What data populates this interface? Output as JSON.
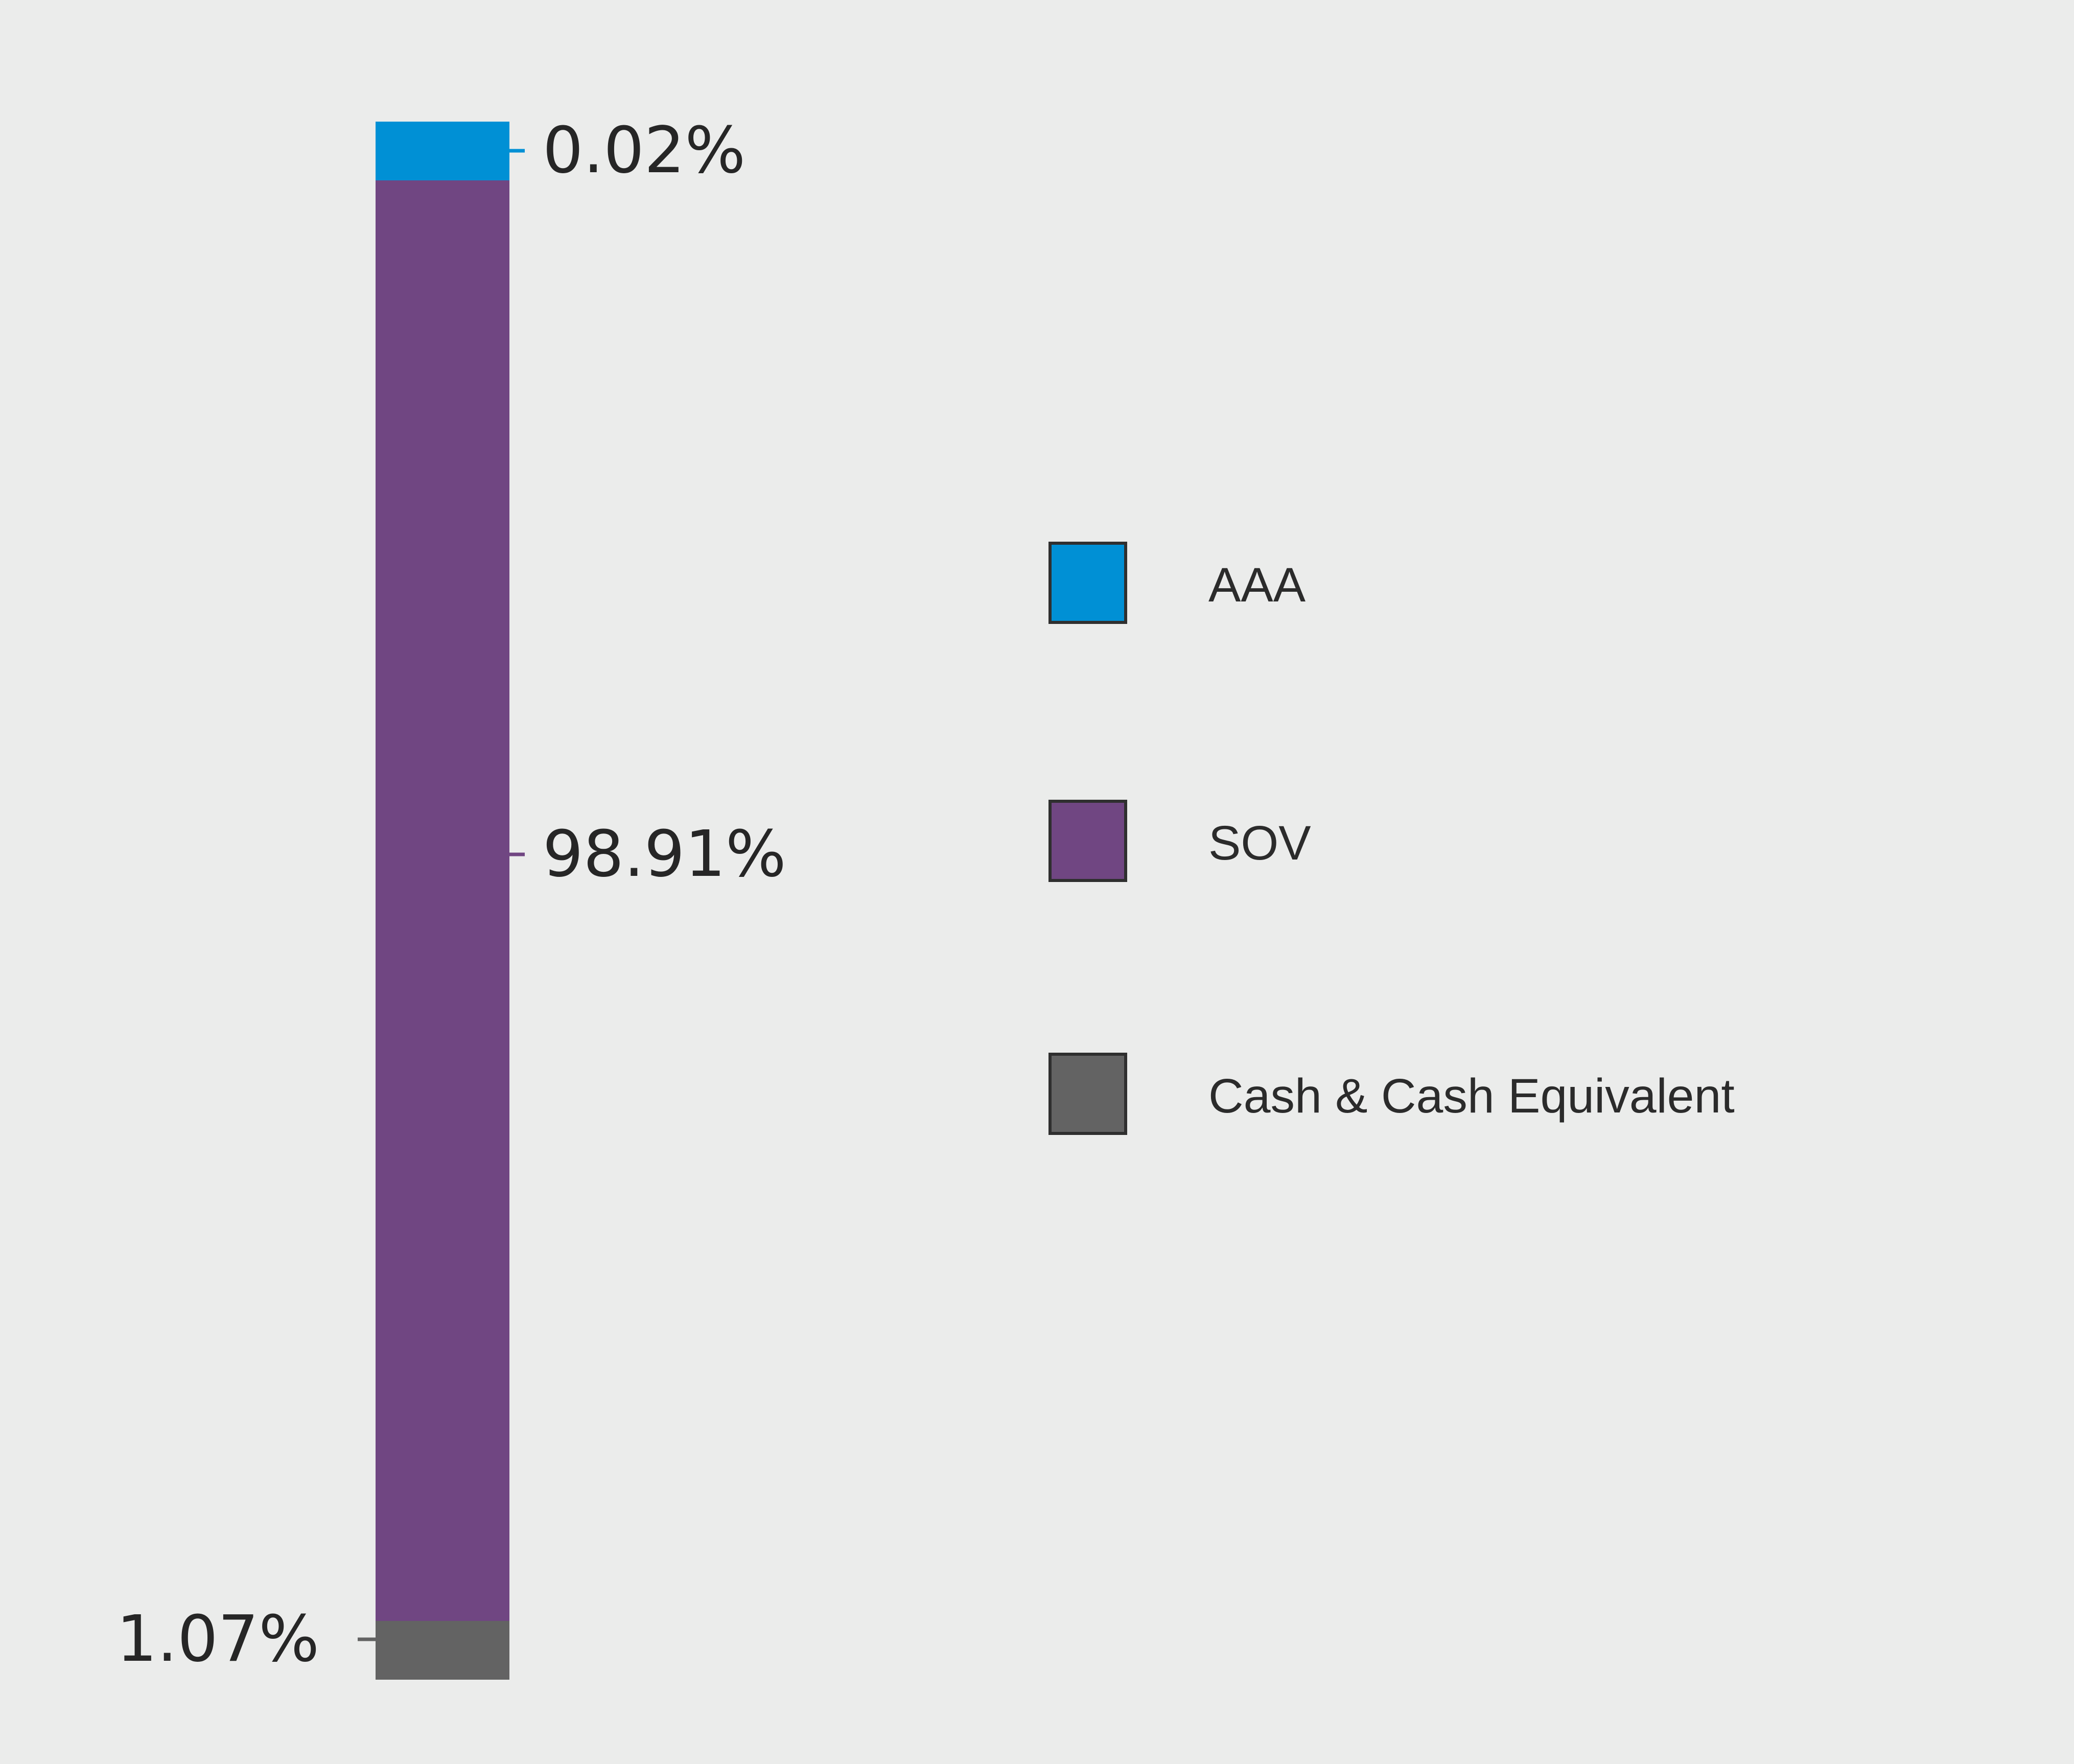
{
  "chart_data": {
    "type": "bar",
    "stacked": true,
    "orientation": "vertical",
    "unit": "%",
    "series": [
      {
        "name": "AAA",
        "value": 0.02,
        "label": "0.02%",
        "color": "#0090d5"
      },
      {
        "name": "SOV",
        "value": 98.91,
        "label": "98.91%",
        "color": "#704682"
      },
      {
        "name": "Cash & Cash Equivalent",
        "value": 1.07,
        "label": "1.07%",
        "color": "#636363"
      }
    ],
    "stack_order_bottom_to_top": [
      "Cash & Cash Equivalent",
      "SOV",
      "AAA"
    ],
    "legend_placement": "right",
    "grid": false,
    "axes_visible": false
  }
}
